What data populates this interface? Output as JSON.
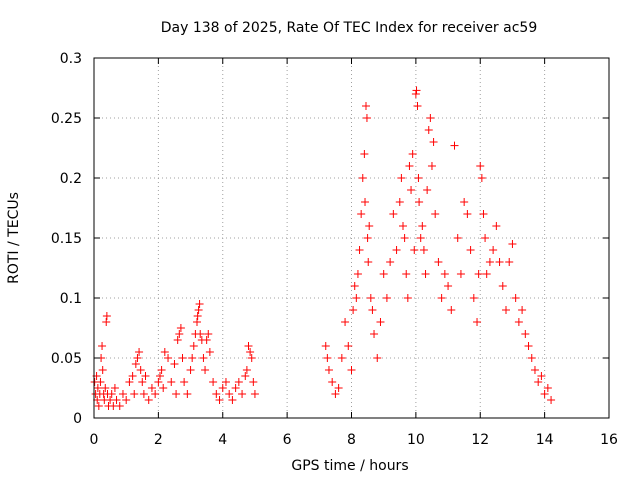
{
  "chart_data": {
    "type": "scatter",
    "title": "Day 138 of 2025, Rate Of TEC Index for receiver ac59",
    "xlabel": "GPS time / hours",
    "ylabel": "ROTI / TECUs",
    "xlim": [
      0,
      16
    ],
    "ylim": [
      0,
      0.3
    ],
    "xticks": [
      "0",
      "2",
      "4",
      "6",
      "8",
      "10",
      "12",
      "14",
      "16"
    ],
    "yticks": [
      "0",
      "0.05",
      "0.1",
      "0.15",
      "0.2",
      "0.25",
      "0.3"
    ],
    "grid": true,
    "marker": "plus",
    "color": "#ff0000",
    "series": [
      {
        "x": [
          0.02,
          0.05,
          0.08,
          0.1,
          0.12,
          0.15,
          0.18,
          0.2,
          0.22,
          0.25,
          0.27,
          0.3,
          0.32,
          0.35,
          0.38,
          0.4,
          0.42,
          0.45,
          0.5,
          0.55,
          0.6,
          0.65,
          0.7,
          0.8,
          0.9,
          1.0,
          1.1,
          1.2,
          1.25,
          1.3,
          1.35,
          1.4,
          1.45,
          1.5,
          1.55,
          1.6,
          1.7,
          1.8,
          1.9,
          2.0,
          2.05,
          2.1,
          2.15,
          2.2,
          2.3,
          2.4,
          2.5,
          2.55,
          2.6,
          2.65,
          2.7,
          2.75,
          2.8,
          2.9,
          3.0,
          3.05,
          3.1,
          3.15,
          3.2,
          3.22,
          3.25,
          3.28,
          3.3,
          3.35,
          3.4,
          3.45,
          3.5,
          3.55,
          3.6,
          3.7,
          3.8,
          3.9,
          4.0,
          4.1,
          4.2,
          4.3,
          4.4,
          4.5,
          4.6,
          4.7,
          4.75,
          4.8,
          4.85,
          4.9,
          4.95,
          5.0,
          7.2,
          7.25,
          7.3,
          7.4,
          7.5,
          7.6,
          7.7,
          7.8,
          7.9,
          8.0,
          8.05,
          8.1,
          8.15,
          8.2,
          8.25,
          8.3,
          8.35,
          8.4,
          8.42,
          8.45,
          8.48,
          8.5,
          8.52,
          8.55,
          8.6,
          8.65,
          8.7,
          8.8,
          8.9,
          9.0,
          9.1,
          9.2,
          9.3,
          9.4,
          9.5,
          9.55,
          9.6,
          9.65,
          9.7,
          9.75,
          9.8,
          9.85,
          9.9,
          9.95,
          10.0,
          10.02,
          10.05,
          10.08,
          10.1,
          10.15,
          10.2,
          10.25,
          10.3,
          10.35,
          10.4,
          10.45,
          10.5,
          10.55,
          10.6,
          10.7,
          10.8,
          10.9,
          11.0,
          11.1,
          11.2,
          11.3,
          11.4,
          11.5,
          11.6,
          11.7,
          11.8,
          11.9,
          11.95,
          12.0,
          12.05,
          12.1,
          12.15,
          12.2,
          12.3,
          12.4,
          12.5,
          12.6,
          12.7,
          12.8,
          12.9,
          13.0,
          13.1,
          13.2,
          13.3,
          13.4,
          13.5,
          13.6,
          13.7,
          13.8,
          13.9,
          14.0,
          14.1,
          14.2
        ],
        "y": [
          0.03,
          0.02,
          0.035,
          0.015,
          0.025,
          0.01,
          0.02,
          0.03,
          0.05,
          0.06,
          0.04,
          0.02,
          0.015,
          0.025,
          0.08,
          0.085,
          0.02,
          0.01,
          0.015,
          0.02,
          0.01,
          0.025,
          0.015,
          0.01,
          0.02,
          0.015,
          0.03,
          0.035,
          0.02,
          0.045,
          0.05,
          0.055,
          0.04,
          0.03,
          0.02,
          0.035,
          0.015,
          0.025,
          0.02,
          0.03,
          0.035,
          0.04,
          0.025,
          0.055,
          0.05,
          0.03,
          0.045,
          0.02,
          0.065,
          0.07,
          0.075,
          0.05,
          0.03,
          0.02,
          0.04,
          0.05,
          0.06,
          0.07,
          0.08,
          0.085,
          0.09,
          0.095,
          0.07,
          0.065,
          0.05,
          0.04,
          0.065,
          0.07,
          0.055,
          0.03,
          0.02,
          0.015,
          0.025,
          0.03,
          0.02,
          0.015,
          0.025,
          0.03,
          0.02,
          0.035,
          0.04,
          0.06,
          0.055,
          0.05,
          0.03,
          0.02,
          0.06,
          0.05,
          0.04,
          0.03,
          0.02,
          0.025,
          0.05,
          0.08,
          0.06,
          0.04,
          0.09,
          0.11,
          0.1,
          0.12,
          0.14,
          0.17,
          0.2,
          0.22,
          0.18,
          0.26,
          0.25,
          0.15,
          0.13,
          0.16,
          0.1,
          0.09,
          0.07,
          0.05,
          0.08,
          0.12,
          0.1,
          0.13,
          0.17,
          0.14,
          0.18,
          0.2,
          0.16,
          0.15,
          0.12,
          0.1,
          0.21,
          0.19,
          0.22,
          0.14,
          0.27,
          0.273,
          0.26,
          0.2,
          0.18,
          0.15,
          0.16,
          0.14,
          0.12,
          0.19,
          0.24,
          0.25,
          0.21,
          0.23,
          0.17,
          0.13,
          0.1,
          0.12,
          0.11,
          0.09,
          0.227,
          0.15,
          0.12,
          0.18,
          0.17,
          0.14,
          0.1,
          0.08,
          0.12,
          0.21,
          0.2,
          0.17,
          0.15,
          0.12,
          0.13,
          0.14,
          0.16,
          0.13,
          0.11,
          0.09,
          0.13,
          0.145,
          0.1,
          0.08,
          0.09,
          0.07,
          0.06,
          0.05,
          0.04,
          0.03,
          0.035,
          0.02,
          0.025,
          0.015
        ]
      }
    ]
  }
}
